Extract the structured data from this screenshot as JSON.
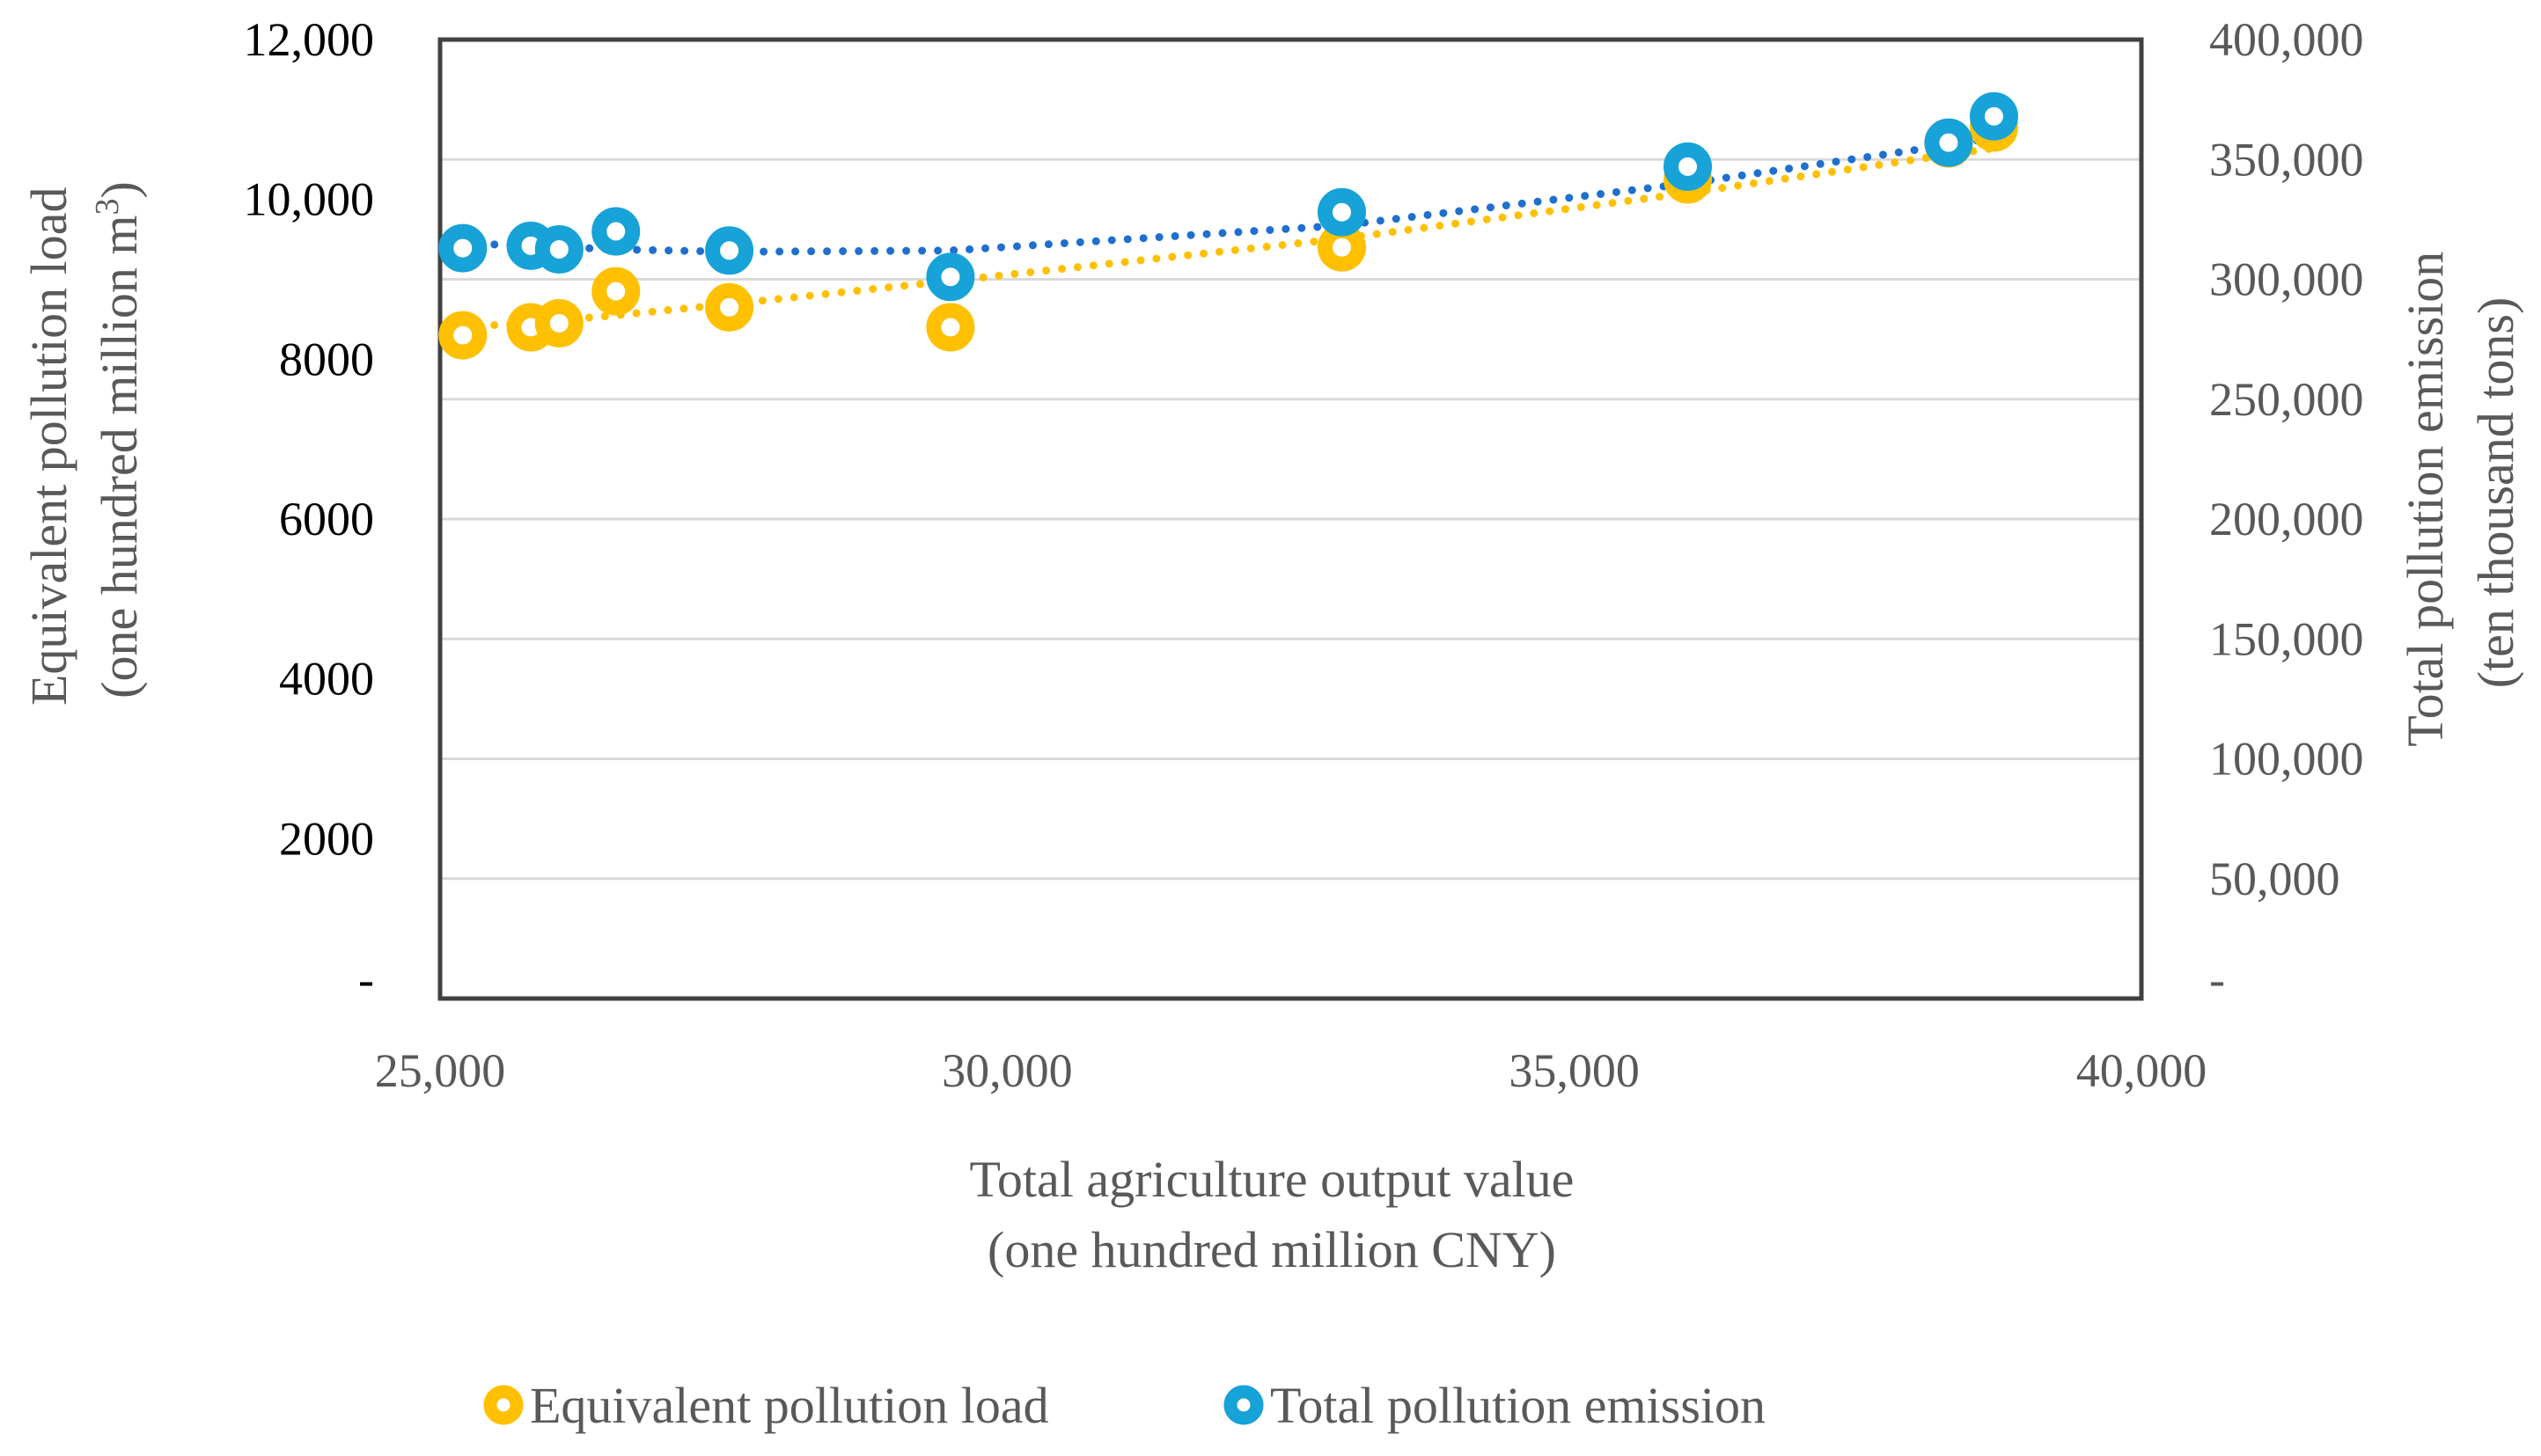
{
  "chart_data": {
    "type": "scatter",
    "x": [
      25200,
      25800,
      26050,
      26550,
      27550,
      29500,
      32950,
      36000,
      38300,
      38700
    ],
    "xlabel_line1": "Total agriculture output value",
    "xlabel_line2": "(one hundred million CNY)",
    "xlim": [
      25000,
      40000
    ],
    "x_ticks": [
      25000,
      30000,
      35000,
      40000
    ],
    "x_tick_labels": [
      "25,000",
      "30,000",
      "35,000",
      "40,000"
    ],
    "y_left": {
      "label_line1": "Equivalent pollution load",
      "label_line2": "(one hundred million m",
      "label_sup": "3",
      "label_end": ")",
      "ticks": [
        {
          "value": 0,
          "label": "-"
        },
        {
          "value": 2000,
          "label": "2000"
        },
        {
          "value": 4000,
          "label": "4000"
        },
        {
          "value": 6000,
          "label": "6000"
        },
        {
          "value": 8000,
          "label": "8000"
        },
        {
          "value": 10000,
          "label": "10,000"
        },
        {
          "value": 12000,
          "label": "12,000"
        }
      ],
      "ylim": [
        0,
        12000
      ]
    },
    "y_right": {
      "label_line1": "Total pollution emission",
      "label_line2": "(ten thousand tons)",
      "ticks": [
        {
          "value": 0,
          "label": "-"
        },
        {
          "value": 50000,
          "label": "50,000"
        },
        {
          "value": 100000,
          "label": "100,000"
        },
        {
          "value": 150000,
          "label": "150,000"
        },
        {
          "value": 200000,
          "label": "200,000"
        },
        {
          "value": 250000,
          "label": "250,000"
        },
        {
          "value": 300000,
          "label": "300,000"
        },
        {
          "value": 350000,
          "label": "350,000"
        },
        {
          "value": 400000,
          "label": "400,000"
        }
      ],
      "ylim": [
        0,
        400000
      ]
    },
    "gridlines": [
      50000,
      100000,
      150000,
      200000,
      250000,
      300000,
      350000,
      400000
    ],
    "series": [
      {
        "name": "Equivalent pollution load",
        "axis": "left",
        "color": "#FFC000",
        "trend_color": "#FFC000",
        "values": [
          8300,
          8400,
          8450,
          8850,
          8650,
          8400,
          9400,
          10250,
          10700,
          10900
        ],
        "trend": [
          8400,
          8460,
          8490,
          8550,
          8690,
          8980,
          9510,
          10080,
          10560,
          10640
        ]
      },
      {
        "name": "Total pollution emission",
        "axis": "right",
        "color": "#17A2D8",
        "trend_color": "#1F6FCF",
        "values": [
          313000,
          314000,
          312500,
          320000,
          312000,
          301000,
          328000,
          347000,
          357000,
          368000
        ],
        "trend": [
          315000,
          314000,
          313500,
          312500,
          311500,
          312000,
          322500,
          340000,
          356000,
          359000
        ]
      }
    ],
    "legend": [
      "Equivalent pollution load",
      "Total pollution emission"
    ],
    "legend_position": "bottom"
  }
}
